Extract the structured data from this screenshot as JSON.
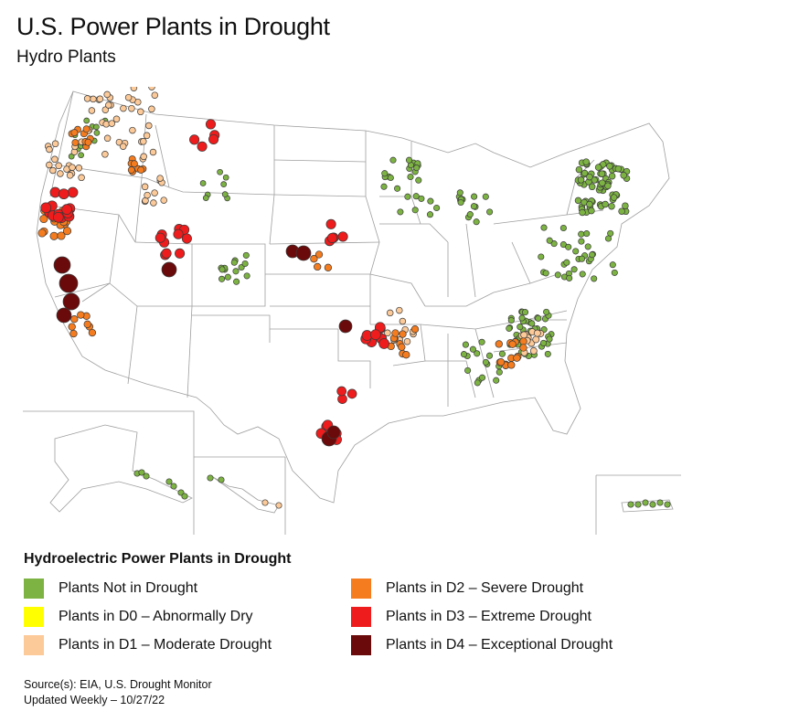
{
  "title": "U.S. Power Plants in Drought",
  "subtitle": "Hydro Plants",
  "legend": {
    "title": "Hydroelectric Power Plants in Drought",
    "items": [
      {
        "label": "Plants Not in Drought",
        "color": "#7cb342"
      },
      {
        "label": "Plants in D0 – Abnormally Dry",
        "color": "#ffff00"
      },
      {
        "label": "Plants in D1 – Moderate Drought",
        "color": "#fcc998"
      },
      {
        "label": "Plants in D2 – Severe Drought",
        "color": "#f57c1f"
      },
      {
        "label": "Plants in D3 – Extreme Drought",
        "color": "#ee1c1c"
      },
      {
        "label": "Plants in D4 – Exceptional Drought",
        "color": "#6b0a0a"
      }
    ]
  },
  "source": {
    "line1": "Source(s): EIA, U.S. Drought Monitor",
    "line2": "Updated Weekly – 10/27/22"
  }
}
